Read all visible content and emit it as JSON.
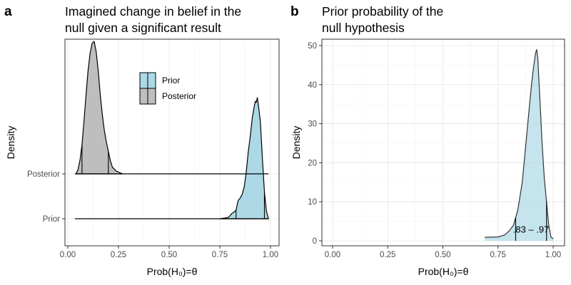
{
  "figure_labels": {
    "a": "a",
    "b": "b"
  },
  "chart_data": [
    {
      "id": "a",
      "type": "ridgeline-density",
      "title_lines": [
        "Imagined change in belief in the",
        "null given a significant result"
      ],
      "xlabel": "Prob(H₀)=θ",
      "ylabel": "Density",
      "xlim": [
        0,
        1
      ],
      "x_ticks": [
        0,
        0.25,
        0.5,
        0.75,
        1
      ],
      "x_tick_labels": [
        "0.00",
        "0.25",
        "0.50",
        "0.75",
        "1.00"
      ],
      "rows": [
        "Posterior",
        "Prior"
      ],
      "legend": {
        "position": "top-center",
        "entries": [
          {
            "label": "Prior",
            "color": "#add8e6"
          },
          {
            "label": "Posterior",
            "color": "#bebebe"
          }
        ]
      },
      "series": [
        {
          "name": "Prior",
          "row": "Prior",
          "color": "#add8e6",
          "baseline_range": [
            0.035,
            0.99
          ],
          "quantile_lines": [
            0.83,
            0.97
          ],
          "density": [
            [
              0.75,
              0
            ],
            [
              0.79,
              0.01
            ],
            [
              0.8,
              0.025
            ],
            [
              0.81,
              0.045
            ],
            [
              0.82,
              0.055
            ],
            [
              0.83,
              0.07
            ],
            [
              0.835,
              0.11
            ],
            [
              0.84,
              0.15
            ],
            [
              0.85,
              0.17
            ],
            [
              0.86,
              0.2
            ],
            [
              0.87,
              0.26
            ],
            [
              0.88,
              0.38
            ],
            [
              0.89,
              0.55
            ],
            [
              0.9,
              0.68
            ],
            [
              0.91,
              0.83
            ],
            [
              0.92,
              0.93
            ],
            [
              0.925,
              0.97
            ],
            [
              0.93,
              0.96
            ],
            [
              0.935,
              1.0
            ],
            [
              0.94,
              0.94
            ],
            [
              0.95,
              0.8
            ],
            [
              0.96,
              0.5
            ],
            [
              0.97,
              0.22
            ],
            [
              0.98,
              0.06
            ],
            [
              0.99,
              0
            ]
          ]
        },
        {
          "name": "Posterior",
          "row": "Posterior",
          "color": "#bebebe",
          "baseline_range": [
            0.035,
            0.99
          ],
          "quantile_lines": [
            0.07,
            0.2
          ],
          "density": [
            [
              0.04,
              0
            ],
            [
              0.05,
              0.03
            ],
            [
              0.06,
              0.1
            ],
            [
              0.07,
              0.22
            ],
            [
              0.08,
              0.4
            ],
            [
              0.09,
              0.6
            ],
            [
              0.1,
              0.78
            ],
            [
              0.11,
              0.91
            ],
            [
              0.12,
              0.985
            ],
            [
              0.13,
              1.0
            ],
            [
              0.14,
              0.92
            ],
            [
              0.15,
              0.78
            ],
            [
              0.16,
              0.6
            ],
            [
              0.17,
              0.45
            ],
            [
              0.18,
              0.33
            ],
            [
              0.19,
              0.24
            ],
            [
              0.2,
              0.17
            ],
            [
              0.21,
              0.1
            ],
            [
              0.22,
              0.05
            ],
            [
              0.24,
              0.02
            ],
            [
              0.27,
              0
            ]
          ]
        }
      ]
    },
    {
      "id": "b",
      "type": "density",
      "title_lines": [
        "Prior probability of the",
        "null hypothesis"
      ],
      "xlabel": "Prob(H₀)=θ",
      "ylabel": "Density",
      "xlim": [
        0,
        1
      ],
      "ylim": [
        0,
        50
      ],
      "x_ticks": [
        0,
        0.25,
        0.5,
        0.75,
        1
      ],
      "x_tick_labels": [
        "0.00",
        "0.25",
        "0.50",
        "0.75",
        "1.00"
      ],
      "y_ticks": [
        0,
        10,
        20,
        30,
        40,
        50
      ],
      "y_tick_labels": [
        "0",
        "10",
        "20",
        "30",
        "40",
        "50"
      ],
      "grid": true,
      "fill_color": "#add8e6",
      "quantile_lines": [
        0.83,
        0.97
      ],
      "annotation": {
        "text": ".83 – .97",
        "x": 0.9,
        "y": 3
      },
      "density": [
        [
          0.69,
          0.9
        ],
        [
          0.75,
          1.0
        ],
        [
          0.78,
          1.5
        ],
        [
          0.8,
          2.5
        ],
        [
          0.82,
          4
        ],
        [
          0.84,
          8
        ],
        [
          0.86,
          15
        ],
        [
          0.88,
          27
        ],
        [
          0.89,
          33
        ],
        [
          0.9,
          39
        ],
        [
          0.91,
          44
        ],
        [
          0.92,
          48
        ],
        [
          0.925,
          49
        ],
        [
          0.93,
          47
        ],
        [
          0.94,
          36
        ],
        [
          0.95,
          25
        ],
        [
          0.96,
          16
        ],
        [
          0.97,
          10
        ],
        [
          0.98,
          4
        ],
        [
          0.99,
          1
        ],
        [
          1.0,
          0.5
        ]
      ]
    }
  ]
}
